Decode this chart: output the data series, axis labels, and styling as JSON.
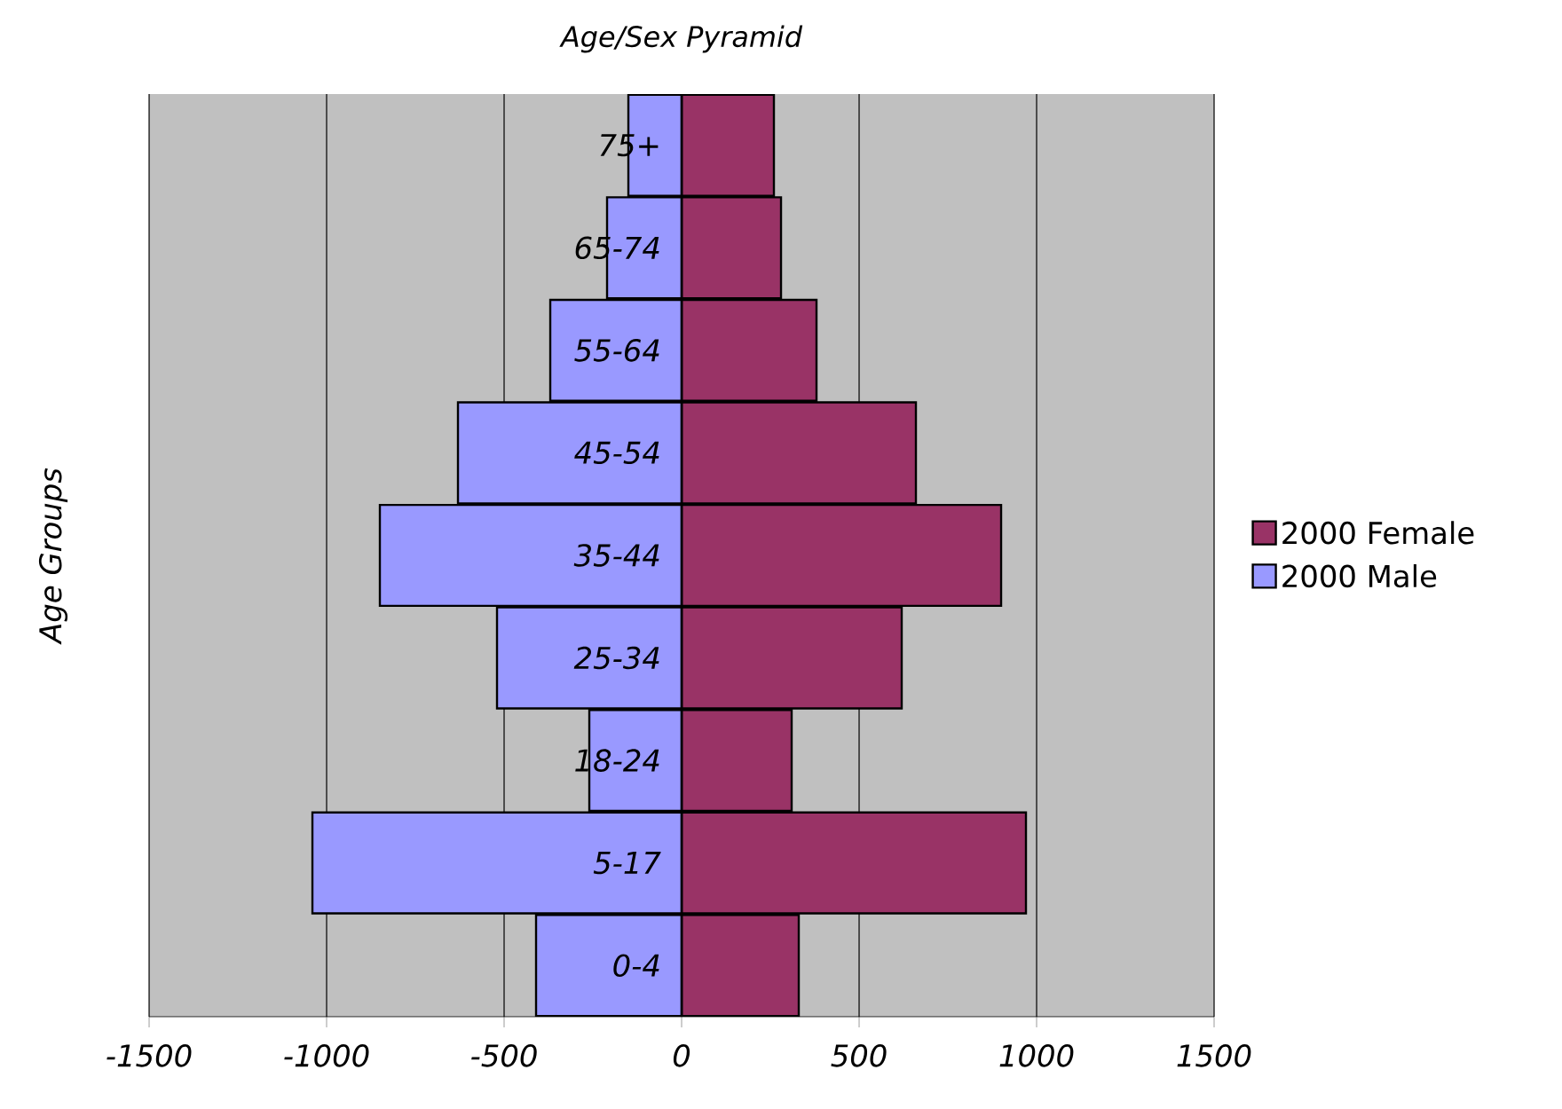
{
  "chart_data": {
    "type": "bar",
    "orientation": "horizontal",
    "title": "Age/Sex Pyramid",
    "ylabel": "Age Groups",
    "categories": [
      "75+",
      "65-74",
      "55-64",
      "45-54",
      "35-44",
      "25-34",
      "18-24",
      "5-17",
      "0-4"
    ],
    "series": [
      {
        "name": "2000 Female",
        "color": "#993366",
        "values": [
          260,
          280,
          380,
          660,
          900,
          620,
          310,
          970,
          330
        ]
      },
      {
        "name": "2000 Male",
        "color": "#9999ff",
        "values": [
          -150,
          -210,
          -370,
          -630,
          -850,
          -520,
          -260,
          -1040,
          -410
        ]
      }
    ],
    "xlim": [
      -1500,
      1500
    ],
    "xticks": [
      -1500,
      -1000,
      -500,
      0,
      500,
      1000,
      1500
    ],
    "stacked": true,
    "grid": "x",
    "legend": "right"
  }
}
